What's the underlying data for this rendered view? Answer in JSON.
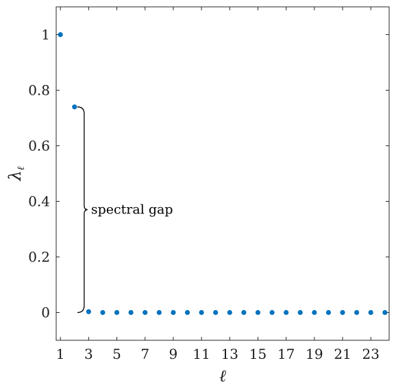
{
  "chart_data": {
    "type": "scatter",
    "title": "",
    "xlabel": "ℓ",
    "ylabel_main": "λ",
    "ylabel_sub": "ℓ",
    "xlim": [
      0.7,
      24.3
    ],
    "ylim": [
      -0.1,
      1.1
    ],
    "x_ticks": [
      1,
      3,
      5,
      7,
      9,
      11,
      13,
      15,
      17,
      19,
      21,
      23
    ],
    "x_tick_labels": [
      "1",
      "3",
      "5",
      "7",
      "9",
      "11",
      "13",
      "15",
      "17",
      "19",
      "21",
      "23"
    ],
    "y_ticks": [
      0,
      0.2,
      0.4,
      0.6,
      0.8,
      1
    ],
    "y_tick_labels": [
      "0",
      "0.2",
      "0.4",
      "0.6",
      "0.8",
      "1"
    ],
    "grid": false,
    "marker_color": "#0072BD",
    "x": [
      1,
      2,
      3,
      4,
      5,
      6,
      7,
      8,
      9,
      10,
      11,
      12,
      13,
      14,
      15,
      16,
      17,
      18,
      19,
      20,
      21,
      22,
      23,
      24
    ],
    "y": [
      1.0,
      0.74,
      0.003,
      0,
      0,
      0,
      0,
      0,
      0,
      0,
      0,
      0,
      0,
      0,
      0,
      0,
      0,
      0,
      0,
      0,
      0,
      0,
      0,
      0
    ],
    "annotation": {
      "text": "spectral gap",
      "from_y": 0,
      "to_y": 0.74
    }
  }
}
